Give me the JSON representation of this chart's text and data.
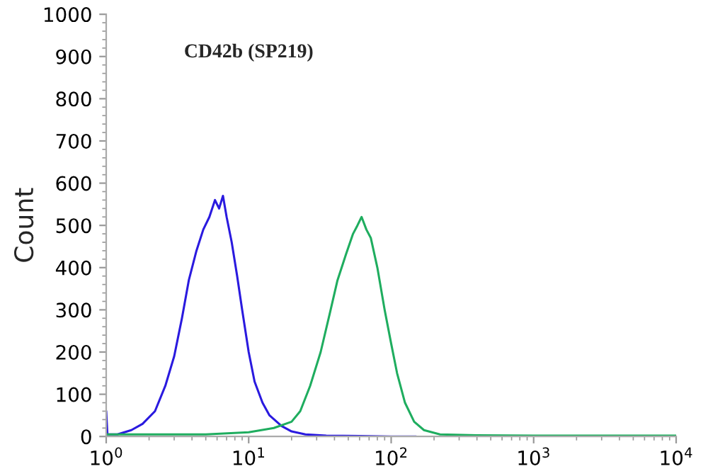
{
  "chart_data": {
    "type": "line",
    "title": "CD42b (SP219)",
    "ylabel": "Count",
    "log": "x",
    "xlim": [
      1,
      10000
    ],
    "ylim": [
      0,
      1000
    ],
    "xticks": [
      {
        "value": 1,
        "label": "10$^{0}$"
      },
      {
        "value": 10,
        "label": "10$^{1}$"
      },
      {
        "value": 100,
        "label": "10$^{2}$"
      },
      {
        "value": 1000,
        "label": "10$^{3}$"
      },
      {
        "value": 10000,
        "label": "10$^{4}$"
      }
    ],
    "yticks": [
      0,
      100,
      200,
      300,
      400,
      500,
      600,
      700,
      800,
      900,
      1000
    ],
    "grid": false,
    "legend": false,
    "marker": "none",
    "line_style": "solid",
    "series": [
      {
        "color": "#2a1adf",
        "x": [
          1.0,
          1.02,
          1.2,
          1.5,
          1.8,
          2.2,
          2.6,
          3.0,
          3.4,
          3.8,
          4.3,
          4.8,
          5.3,
          5.8,
          6.2,
          6.6,
          7.0,
          7.6,
          8.3,
          9,
          10,
          11,
          12.5,
          14,
          17,
          20,
          25,
          35,
          60,
          100,
          150
        ],
        "values": [
          60,
          5,
          5,
          15,
          30,
          60,
          120,
          190,
          280,
          370,
          440,
          490,
          520,
          560,
          540,
          570,
          520,
          460,
          380,
          300,
          200,
          130,
          80,
          50,
          25,
          12,
          5,
          2,
          1,
          0,
          0
        ]
      },
      {
        "color": "#1fad5f",
        "x": [
          1,
          5,
          10,
          15,
          20,
          23,
          27,
          32,
          37,
          42,
          48,
          54,
          58,
          62,
          67,
          72,
          80,
          90,
          100,
          110,
          125,
          145,
          170,
          220,
          400,
          1000,
          10000
        ],
        "values": [
          5,
          5,
          10,
          20,
          35,
          60,
          120,
          200,
          290,
          370,
          430,
          480,
          500,
          520,
          490,
          470,
          400,
          300,
          220,
          150,
          80,
          35,
          15,
          5,
          3,
          2,
          2
        ]
      }
    ]
  }
}
